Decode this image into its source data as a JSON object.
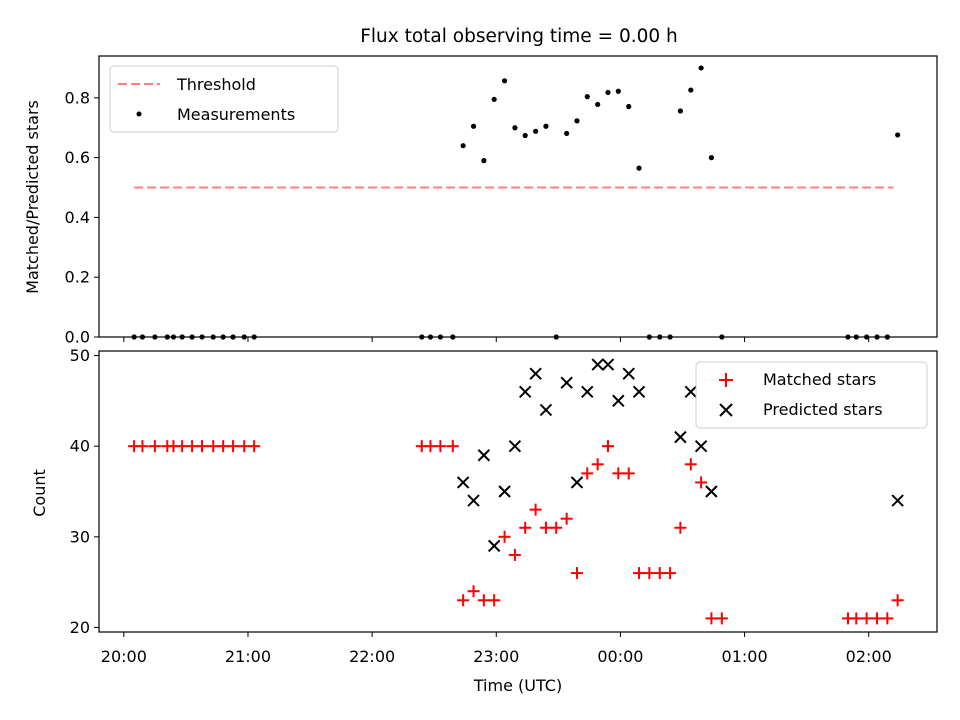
{
  "figure": {
    "title": "Flux total observing time = 0.00 h"
  },
  "chart_data": [
    {
      "type": "scatter",
      "panel": "top",
      "ylabel": "Matched/Predicted stars",
      "xlabel": "",
      "xlim": [
        19.8,
        26.55
      ],
      "ylim": [
        0,
        0.94
      ],
      "yticks": [
        0.0,
        0.2,
        0.4,
        0.6,
        0.8
      ],
      "ytick_labels": [
        "0.0",
        "0.2",
        "0.4",
        "0.6",
        "0.8"
      ],
      "legend_position": "upper-left",
      "threshold": {
        "name": "Threshold",
        "value": 0.5,
        "x_range": [
          20.083,
          26.2
        ],
        "color": "#ff7f7f"
      },
      "series": [
        {
          "name": "Measurements",
          "color": "#000000",
          "x": [
            20.083,
            20.15,
            20.25,
            20.35,
            20.4,
            20.47,
            20.55,
            20.63,
            20.72,
            20.8,
            20.88,
            20.97,
            21.05,
            22.4,
            22.47,
            22.55,
            22.65,
            22.733,
            22.817,
            22.9,
            22.983,
            23.067,
            23.15,
            23.233,
            23.317,
            23.4,
            23.483,
            23.567,
            23.65,
            23.733,
            23.817,
            23.9,
            23.983,
            24.067,
            24.15,
            24.233,
            24.317,
            24.4,
            24.483,
            24.567,
            24.65,
            24.733,
            24.817,
            25.833,
            25.9,
            25.983,
            26.067,
            26.15,
            26.233
          ],
          "y": [
            0,
            0,
            0,
            0,
            0,
            0,
            0,
            0,
            0,
            0,
            0,
            0,
            0,
            0,
            0,
            0,
            0,
            0.64,
            0.705,
            0.59,
            0.795,
            0.857,
            0.7,
            0.674,
            0.688,
            0.705,
            0,
            0.681,
            0.723,
            0.804,
            0.778,
            0.818,
            0.822,
            0.771,
            0.565,
            0,
            0,
            0,
            0.756,
            0.826,
            0.9,
            0.6,
            0,
            0,
            0,
            0,
            0,
            0,
            0.676
          ]
        }
      ]
    },
    {
      "type": "scatter",
      "panel": "bottom",
      "xlabel": "Time (UTC)",
      "ylabel": "Count",
      "xlim": [
        19.8,
        26.55
      ],
      "ylim": [
        19.5,
        50.5
      ],
      "yticks": [
        20,
        30,
        40,
        50
      ],
      "ytick_labels": [
        "20",
        "30",
        "40",
        "50"
      ],
      "xticks": [
        20,
        21,
        22,
        23,
        24,
        25,
        26
      ],
      "xtick_labels": [
        "20:00",
        "21:00",
        "22:00",
        "23:00",
        "00:00",
        "01:00",
        "02:00"
      ],
      "legend_position": "upper-right",
      "series": [
        {
          "name": "Matched stars",
          "marker": "plus",
          "color": "#ff0000",
          "x": [
            20.083,
            20.15,
            20.25,
            20.35,
            20.4,
            20.47,
            20.55,
            20.63,
            20.72,
            20.8,
            20.88,
            20.97,
            21.05,
            22.4,
            22.47,
            22.55,
            22.65,
            22.733,
            22.817,
            22.9,
            22.983,
            23.067,
            23.15,
            23.233,
            23.317,
            23.4,
            23.483,
            23.567,
            23.65,
            23.733,
            23.817,
            23.9,
            23.983,
            24.067,
            24.15,
            24.233,
            24.317,
            24.4,
            24.483,
            24.567,
            24.65,
            24.733,
            24.817,
            25.833,
            25.9,
            25.983,
            26.067,
            26.15,
            26.233
          ],
          "y": [
            40,
            40,
            40,
            40,
            40,
            40,
            40,
            40,
            40,
            40,
            40,
            40,
            40,
            40,
            40,
            40,
            40,
            23,
            24,
            23,
            23,
            30,
            28,
            31,
            33,
            31,
            31,
            32,
            26,
            37,
            38,
            40,
            37,
            37,
            26,
            26,
            26,
            26,
            31,
            38,
            36,
            21,
            21,
            21,
            21,
            21,
            21,
            21,
            23
          ]
        },
        {
          "name": "Predicted stars",
          "marker": "x",
          "color": "#000000",
          "x": [
            22.733,
            22.817,
            22.9,
            22.983,
            23.067,
            23.15,
            23.233,
            23.317,
            23.4,
            23.567,
            23.65,
            23.733,
            23.817,
            23.9,
            23.983,
            24.067,
            24.15,
            24.483,
            24.567,
            24.65,
            24.733,
            26.233
          ],
          "y": [
            36,
            34,
            39,
            29,
            35,
            40,
            46,
            48,
            44,
            47,
            36,
            46,
            49,
            49,
            45,
            48,
            46,
            41,
            46,
            40,
            35,
            34
          ]
        }
      ]
    }
  ]
}
